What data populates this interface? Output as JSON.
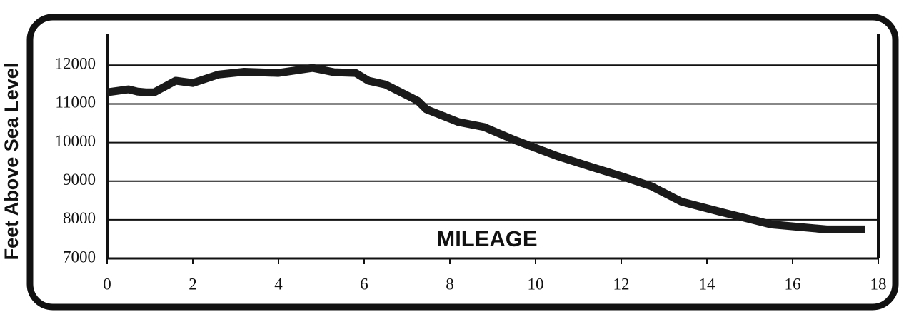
{
  "chart_data": {
    "type": "line",
    "x_label": "MILEAGE",
    "y_label": "Feet Above Sea Level",
    "x": [
      0,
      0.5,
      0.7,
      0.9,
      1.1,
      1.6,
      2.0,
      2.6,
      3.2,
      4.0,
      4.8,
      5.3,
      5.8,
      6.1,
      6.5,
      7.25,
      7.45,
      8.2,
      8.8,
      9.5,
      10.5,
      11.3,
      12.0,
      12.7,
      13.4,
      14.3,
      15.5,
      16.8,
      17.7
    ],
    "values": [
      11300,
      11375,
      11320,
      11300,
      11300,
      11600,
      11540,
      11760,
      11830,
      11800,
      11930,
      11820,
      11800,
      11600,
      11500,
      11080,
      10860,
      10530,
      10400,
      10070,
      9650,
      9370,
      9130,
      8870,
      8470,
      8210,
      7880,
      7750,
      7750
    ],
    "color": "#1a1a1a",
    "xlim": [
      0,
      18
    ],
    "ylim": [
      7000,
      12800
    ],
    "xticks": [
      0,
      2,
      4,
      6,
      8,
      10,
      12,
      14,
      16,
      18
    ],
    "yticks": [
      7000,
      8000,
      9000,
      10000,
      11000,
      12000
    ],
    "grid": true
  }
}
